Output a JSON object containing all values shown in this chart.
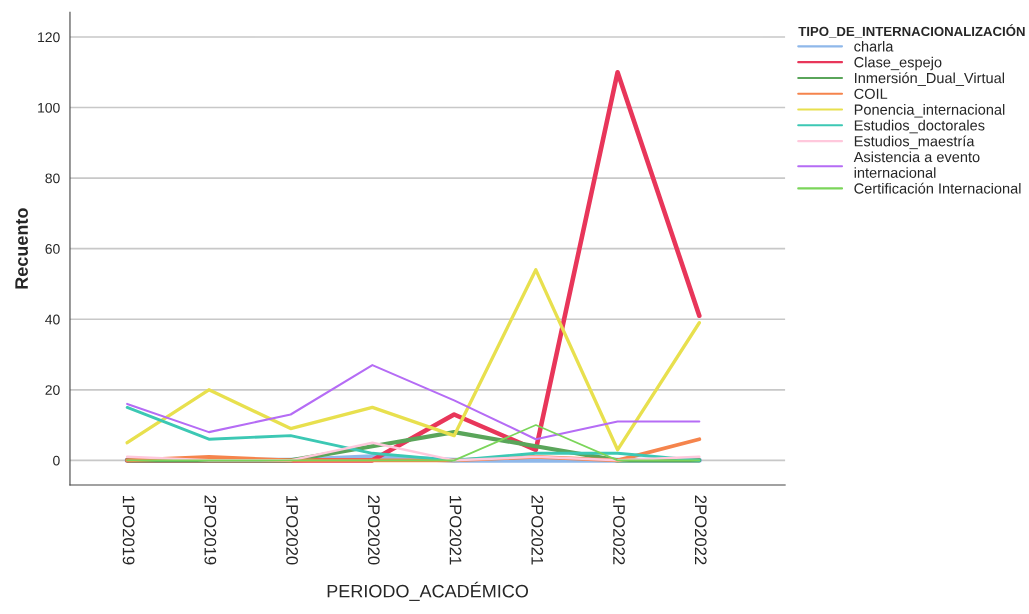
{
  "chart_data": {
    "type": "line",
    "xlabel": "PERIODO_ACADÉMICO",
    "ylabel": "Recuento",
    "legend_title": "TIPO_DE_INTERNACIONALIZACIÓN",
    "categories": [
      "1PO2019",
      "2PO2019",
      "1PO2020",
      "2PO2020",
      "1PO2021",
      "2PO2021",
      "1PO2022",
      "2PO2022"
    ],
    "series": [
      {
        "name": "charla",
        "color": "#8fb8ea",
        "values": [
          0,
          0,
          0,
          1,
          0,
          0,
          0,
          0
        ]
      },
      {
        "name": "Clase_espejo",
        "color": "#e8365a",
        "values": [
          0,
          0,
          0,
          0,
          13,
          3,
          110,
          41
        ]
      },
      {
        "name": "Inmersión_Dual_Virtual",
        "color": "#5aa55a",
        "values": [
          0,
          0,
          0,
          4,
          8,
          4,
          0,
          0
        ]
      },
      {
        "name": "COIL",
        "color": "#f5844c",
        "values": [
          0,
          1,
          0,
          0,
          0,
          1,
          0,
          6
        ]
      },
      {
        "name": "Ponencia_internacional",
        "color": "#e8e04e",
        "values": [
          5,
          20,
          9,
          15,
          7,
          54,
          3,
          39
        ]
      },
      {
        "name": "Estudios_doctorales",
        "color": "#3cc8b4",
        "values": [
          15,
          6,
          7,
          2,
          0,
          2,
          2,
          0
        ]
      },
      {
        "name": "Estudios_maestría",
        "color": "#ffc8dc",
        "values": [
          1,
          0,
          0,
          5,
          0,
          1,
          0,
          1
        ]
      },
      {
        "name": "Asistencia a evento\ninternacional",
        "color": "#b56cf5",
        "values": [
          16,
          8,
          13,
          27,
          17,
          6,
          11,
          11
        ]
      },
      {
        "name": "Certificación Internacional",
        "color": "#7bd55a",
        "values": [
          0,
          0,
          0,
          0,
          0,
          10,
          0,
          0
        ]
      }
    ],
    "ylim": [
      -7,
      127
    ],
    "yticks": [
      0,
      20,
      40,
      60,
      80,
      100,
      120
    ],
    "grid": "y",
    "legend": "top right",
    "marker": "none",
    "line_style": "solid"
  }
}
